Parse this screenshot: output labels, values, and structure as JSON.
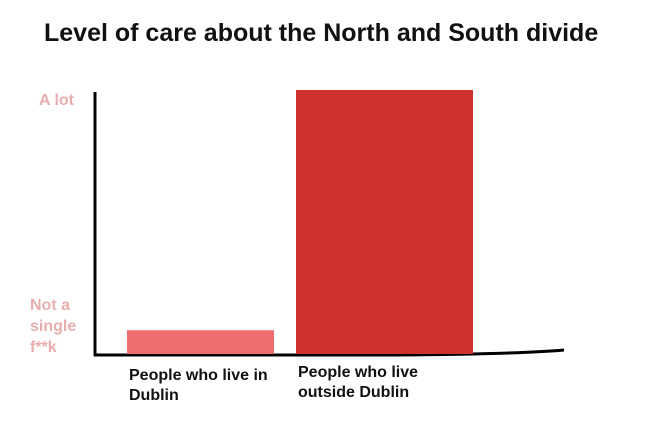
{
  "chart_data": {
    "type": "bar",
    "title": "Level of care about the North and South divide",
    "categories": [
      "People who live in Dublin",
      "People who live outside Dublin"
    ],
    "values": [
      9,
      100
    ],
    "colors": [
      "#ee6e6e",
      "#cf3030"
    ],
    "ylim": [
      0,
      100
    ],
    "yticks": [
      {
        "value": 0,
        "label": "Not a single f**k"
      },
      {
        "value": 100,
        "label": "A lot"
      }
    ]
  }
}
